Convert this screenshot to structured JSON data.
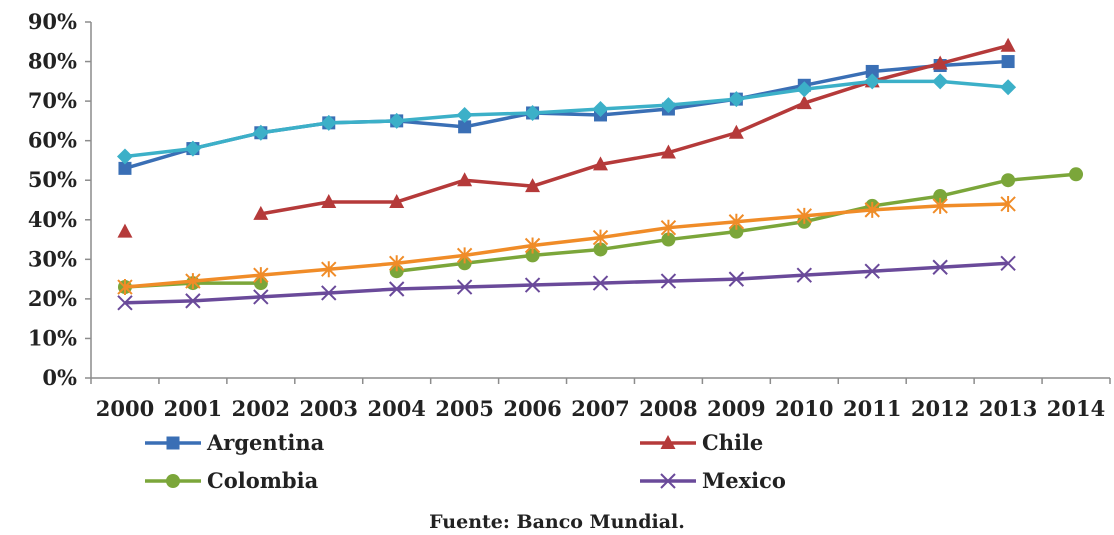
{
  "chart_data": {
    "type": "line",
    "title": "",
    "xlabel": "",
    "ylabel": "",
    "x": [
      "2000",
      "2001",
      "2002",
      "2003",
      "2004",
      "2005",
      "2006",
      "2007",
      "2008",
      "2009",
      "2010",
      "2011",
      "2012",
      "2013",
      "2014"
    ],
    "y_ticks": [
      "0%",
      "10%",
      "20%",
      "30%",
      "40%",
      "50%",
      "60%",
      "70%",
      "80%",
      "90%"
    ],
    "ylim": [
      0,
      90
    ],
    "grid": false,
    "legend_position": "bottom",
    "source": "Fuente: Banco Mundial.",
    "series": [
      {
        "name": "Argentina",
        "color": "#3a6fb5",
        "marker": "square",
        "legend": true,
        "values": [
          53,
          58,
          62,
          64.5,
          65,
          63.5,
          67,
          66.5,
          68,
          70.5,
          74,
          77.5,
          79,
          80,
          null
        ]
      },
      {
        "name": "Chile",
        "color": "#b53a3a",
        "marker": "triangle",
        "legend": true,
        "values": [
          37,
          null,
          41.5,
          44.5,
          44.5,
          50,
          48.5,
          54,
          57,
          62,
          69.5,
          75,
          79.5,
          84,
          null
        ]
      },
      {
        "name": "Colombia",
        "color": "#7ba63a",
        "marker": "circle",
        "legend": true,
        "values": [
          23,
          24,
          24,
          null,
          27,
          29,
          31,
          32.5,
          35,
          37,
          39.5,
          43.5,
          46,
          50,
          51.5
        ]
      },
      {
        "name": "Mexico",
        "color": "#6a4a9a",
        "marker": "x",
        "legend": true,
        "values": [
          19,
          19.5,
          20.5,
          21.5,
          22.5,
          23,
          23.5,
          24,
          24.5,
          25,
          26,
          27,
          28,
          29,
          null
        ]
      },
      {
        "name": "",
        "color": "#3cb0c8",
        "marker": "diamond",
        "legend": false,
        "values": [
          56,
          58,
          62,
          64.5,
          65,
          66.5,
          67,
          68,
          69,
          70.5,
          73,
          75,
          75,
          73.5,
          null
        ]
      },
      {
        "name": "",
        "color": "#f08c28",
        "marker": "star",
        "legend": false,
        "values": [
          23,
          24.5,
          26,
          27.5,
          29,
          31,
          33.5,
          35.5,
          38,
          39.5,
          41,
          42.5,
          43.5,
          44,
          null
        ]
      }
    ]
  }
}
